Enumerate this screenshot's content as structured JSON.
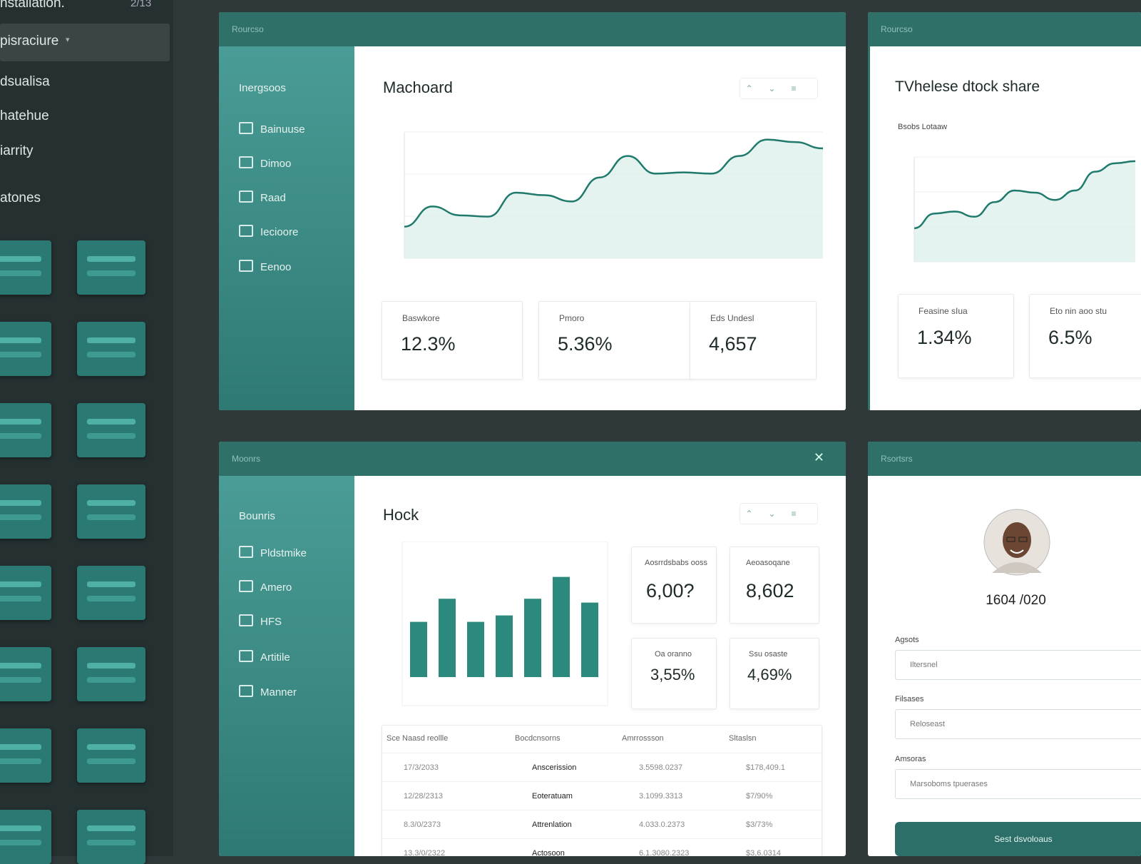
{
  "sidebar": {
    "title": "nstallation.",
    "badge": "2/13",
    "selected": "pisraciure",
    "items": [
      "dsualisa",
      "hatehue",
      "iarrity",
      "atones"
    ]
  },
  "panels": [
    {
      "header": "Rourcso",
      "nav_title": "Inergsoos",
      "nav": [
        "Bainuuse",
        "Dimoo",
        "Raad",
        "Iecioore",
        "Eenoo"
      ],
      "title": "Machoard",
      "chart": {
        "type": "line",
        "ylim": [
          0,
          100
        ],
        "values": [
          25,
          41,
          34,
          33,
          52,
          50,
          45,
          64,
          81,
          67,
          68,
          67,
          81,
          94,
          92,
          87
        ]
      },
      "stats": [
        {
          "label": "Baswkore",
          "value": "12.3%"
        },
        {
          "label": "Pmoro",
          "value": "5.36%"
        },
        {
          "label": "Eds Undesl",
          "value": "4,657"
        }
      ]
    },
    {
      "header": "Rourcso",
      "title": "TVhelese dtock share",
      "subtitle": "Bsobs Lotaaw",
      "chart": {
        "type": "line",
        "ylim": [
          0,
          100
        ],
        "values": [
          32,
          46,
          48,
          43,
          57,
          68,
          66,
          59,
          68,
          86,
          94,
          96
        ]
      },
      "stats": [
        {
          "label": "Feasine sIua",
          "value": "1.34%"
        },
        {
          "label": "Eto nin aoo stu",
          "value": "6.5%"
        }
      ]
    },
    {
      "header": "Moonrs",
      "nav_title": "Bounris",
      "nav": [
        "Pldstmike",
        "Amero",
        "HFS",
        "Artitile",
        "Manner"
      ],
      "title": "Hock",
      "chart": {
        "type": "bar",
        "ylim": [
          0,
          100
        ],
        "values": [
          43,
          61,
          43,
          48,
          61,
          78,
          58
        ]
      },
      "stats": [
        {
          "label": "Aosrrdsbabs ooss",
          "value": "6,00?"
        },
        {
          "label": "Aeoasoqane",
          "value": "8,602"
        },
        {
          "label": "Oa oranno",
          "value": "3,55%"
        },
        {
          "label": "Ssu osaste",
          "value": "4,69%"
        }
      ],
      "table": {
        "columns": [
          "Sce Naasd reollle",
          "Bocdcnsorns",
          "Amrrossson",
          "Sltaslsn"
        ],
        "rows": [
          [
            "17/3/2033",
            "Anscerission",
            "3.5598.0237",
            "$178,409.1"
          ],
          [
            "12/28/2313",
            "Eoteratuam",
            "3.1099.3313",
            "$7/90%"
          ],
          [
            "8.3/0/2373",
            "Attrenlation",
            "4.033.0.2373",
            "$3/73%"
          ],
          [
            "13.3/0/2322",
            "Actosoon",
            "6.1.3080.2323",
            "$3,6.0314"
          ]
        ]
      }
    },
    {
      "header": "Rsortsrs",
      "name": "1604 /020",
      "fields": [
        {
          "label": "Agsots",
          "placeholder": "Iltersnel"
        },
        {
          "label": "Filsases",
          "placeholder": "Reloseast"
        },
        {
          "label": "Amsoras",
          "placeholder": "Marsoboms tpuerases"
        }
      ],
      "button": "Sest dsvoloaus"
    }
  ]
}
